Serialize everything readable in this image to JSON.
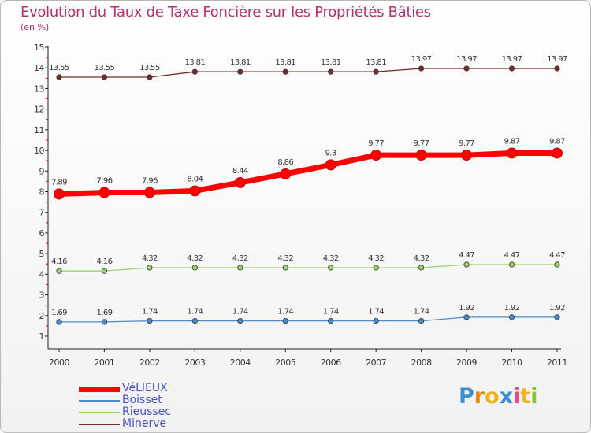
{
  "chart_data": {
    "type": "line",
    "title": "Evolution du Taux de Taxe Foncière sur les Propriétés Bâties",
    "ylabel": "(en %)",
    "xlabel": "",
    "categories": [
      "2000",
      "2001",
      "2002",
      "2003",
      "2004",
      "2005",
      "2006",
      "2007",
      "2008",
      "2009",
      "2010",
      "2011"
    ],
    "ylim": [
      0.5,
      15
    ],
    "yticks": [
      1,
      2,
      3,
      4,
      5,
      6,
      7,
      8,
      9,
      10,
      11,
      12,
      13,
      14,
      15
    ],
    "grid": false,
    "series": [
      {
        "name": "VéLIEUX",
        "color": "#ff0000",
        "width": 7,
        "values": [
          7.89,
          7.96,
          7.96,
          8.04,
          8.44,
          8.86,
          9.3,
          9.77,
          9.77,
          9.77,
          9.87,
          9.87
        ],
        "labels": [
          "7.89",
          "7.96",
          "7.96",
          "8.04",
          "8.44",
          "8.86",
          "9.3",
          "9.77",
          "9.77",
          "9.77",
          "9.87",
          "9.87"
        ]
      },
      {
        "name": "Boisset",
        "color": "#4c8cc8",
        "width": 1.3,
        "values": [
          1.69,
          1.69,
          1.74,
          1.74,
          1.74,
          1.74,
          1.74,
          1.74,
          1.74,
          1.92,
          1.92,
          1.92
        ],
        "labels": [
          "1.69",
          "1.69",
          "1.74",
          "1.74",
          "1.74",
          "1.74",
          "1.74",
          "1.74",
          "1.74",
          "1.92",
          "1.92",
          "1.92"
        ]
      },
      {
        "name": "Rieussec",
        "color": "#9ad36a",
        "width": 1.3,
        "values": [
          4.16,
          4.16,
          4.32,
          4.32,
          4.32,
          4.32,
          4.32,
          4.32,
          4.32,
          4.47,
          4.47,
          4.47
        ],
        "labels": [
          "4.16",
          "4.16",
          "4.32",
          "4.32",
          "4.32",
          "4.32",
          "4.32",
          "4.32",
          "4.32",
          "4.47",
          "4.47",
          "4.47"
        ]
      },
      {
        "name": "Minerve",
        "color": "#7a2c2c",
        "width": 1.3,
        "values": [
          13.55,
          13.55,
          13.55,
          13.81,
          13.81,
          13.81,
          13.81,
          13.81,
          13.97,
          13.97,
          13.97,
          13.97
        ],
        "labels": [
          "13.55",
          "13.55",
          "13.55",
          "13.81",
          "13.81",
          "13.81",
          "13.81",
          "13.81",
          "13.97",
          "13.97",
          "13.97",
          "13.97"
        ]
      }
    ],
    "legend": {
      "placement": "bottom-left"
    }
  },
  "logo": {
    "text": "Proxiti",
    "colors": [
      "#3a8fd0",
      "#e88a1a",
      "#f2b21c",
      "#3a8fd0",
      "#e84a8a",
      "#f2b21c",
      "#8ac23a"
    ]
  }
}
